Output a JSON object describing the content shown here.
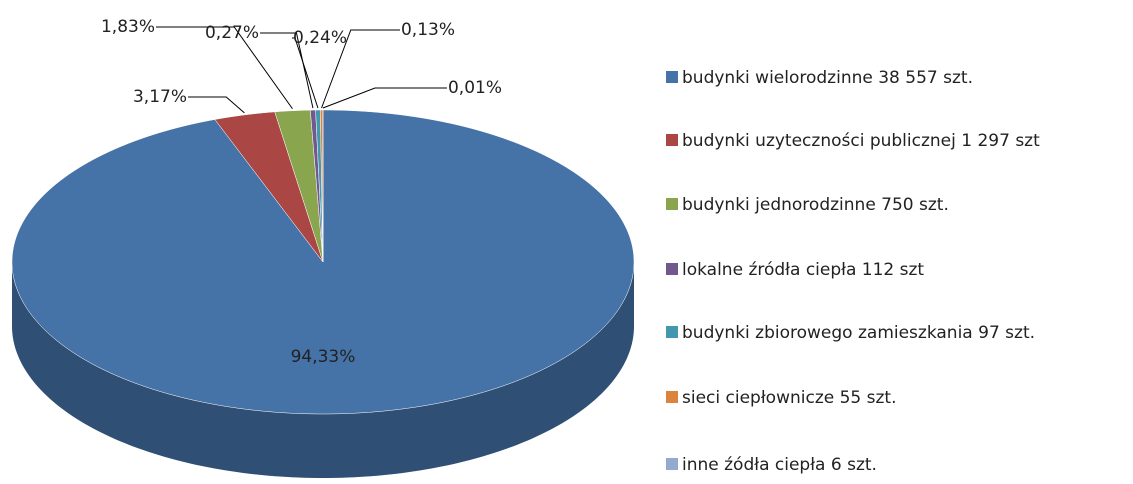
{
  "chart_data": {
    "type": "pie3d",
    "categories": [
      "budynki wielorodzinne 38 557 szt.",
      "budynki uzyteczności publicznej 1 297 szt",
      "budynki jednorodzinne 750 szt.",
      "lokalne źródła ciepła 112 szt",
      "budynki zbiorowego zamieszkania 97 szt.",
      "sieci ciepłownicze 55 szt.",
      "inne źódła ciepła 6 szt."
    ],
    "values": [
      94.33,
      3.17,
      1.83,
      0.27,
      0.24,
      0.13,
      0.01
    ],
    "value_labels": [
      "94,33%",
      "3,17%",
      "1,83%",
      "0,27%",
      "0,24%",
      "0,13%",
      "0,01%"
    ],
    "colors": [
      "#4572a7",
      "#aa4643",
      "#89a54e",
      "#71588f",
      "#4198af",
      "#db843d",
      "#93a9cf"
    ]
  }
}
